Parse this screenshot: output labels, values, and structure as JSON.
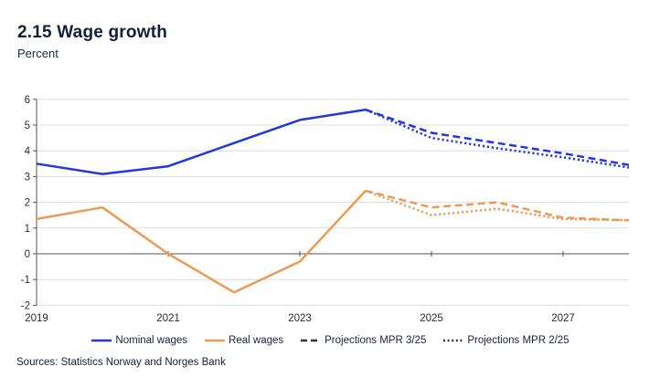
{
  "header": {
    "title": "2.15 Wage growth",
    "subtitle": "Percent"
  },
  "footer": {
    "sources": "Sources: Statistics Norway and Norges Bank"
  },
  "colors": {
    "accent_blue": "#2238dc",
    "accent_orange": "#ec9b55",
    "legend_navy": "#24344d",
    "navy_text": "#121f3d",
    "grid": "#dcdcdc",
    "zero_line": "#555555",
    "axis": "#555555",
    "tick_text": "#2b2b2b"
  },
  "chart_data": {
    "type": "line",
    "title": "2.15 Wage growth",
    "ylabel": "Percent",
    "ylim": [
      -2,
      6
    ],
    "y_ticks": [
      6,
      5,
      4,
      3,
      2,
      1,
      0,
      -1,
      -2
    ],
    "x_ticks": [
      2019,
      2021,
      2023,
      2025,
      2027
    ],
    "x_range": [
      2019,
      2028
    ],
    "grid": "horizontal",
    "legend_position": "bottom",
    "series": [
      {
        "name": "Nominal wages",
        "style": "solid",
        "color": "#2238dc",
        "x": [
          2019,
          2020,
          2021,
          2022,
          2023,
          2024
        ],
        "values": [
          3.5,
          3.1,
          3.4,
          4.3,
          5.2,
          5.6
        ]
      },
      {
        "name": "Real wages",
        "style": "solid",
        "color": "#ec9b55",
        "x": [
          2019,
          2020,
          2021,
          2022,
          2023,
          2024
        ],
        "values": [
          1.35,
          1.8,
          0.0,
          -1.5,
          -0.3,
          2.45
        ]
      },
      {
        "name": "Nominal wages projection MPR 3/25",
        "style": "dashed",
        "color": "#2238dc",
        "x": [
          2024,
          2025,
          2026,
          2027,
          2028
        ],
        "values": [
          5.6,
          4.7,
          4.3,
          3.9,
          3.45
        ]
      },
      {
        "name": "Real wages projection MPR 3/25",
        "style": "dashed",
        "color": "#ec9b55",
        "x": [
          2024,
          2025,
          2026,
          2027,
          2028
        ],
        "values": [
          2.45,
          1.8,
          2.0,
          1.4,
          1.3
        ]
      },
      {
        "name": "Nominal wages projection MPR 2/25",
        "style": "dotted",
        "color": "#2238dc",
        "x": [
          2024,
          2025,
          2026,
          2027,
          2028
        ],
        "values": [
          5.6,
          4.5,
          4.1,
          3.75,
          3.35
        ]
      },
      {
        "name": "Real wages projection MPR 2/25",
        "style": "dotted",
        "color": "#ec9b55",
        "x": [
          2024,
          2025,
          2026,
          2027,
          2028
        ],
        "values": [
          2.45,
          1.5,
          1.75,
          1.35,
          1.3
        ]
      }
    ],
    "legend": [
      {
        "label": "Nominal wages",
        "style": "solid",
        "color": "#2238dc"
      },
      {
        "label": "Real wages",
        "style": "solid",
        "color": "#ec9b55"
      },
      {
        "label": "Projections MPR 3/25",
        "style": "dashed",
        "color": "#24344d"
      },
      {
        "label": "Projections MPR 2/25",
        "style": "dotted",
        "color": "#24344d"
      }
    ]
  }
}
